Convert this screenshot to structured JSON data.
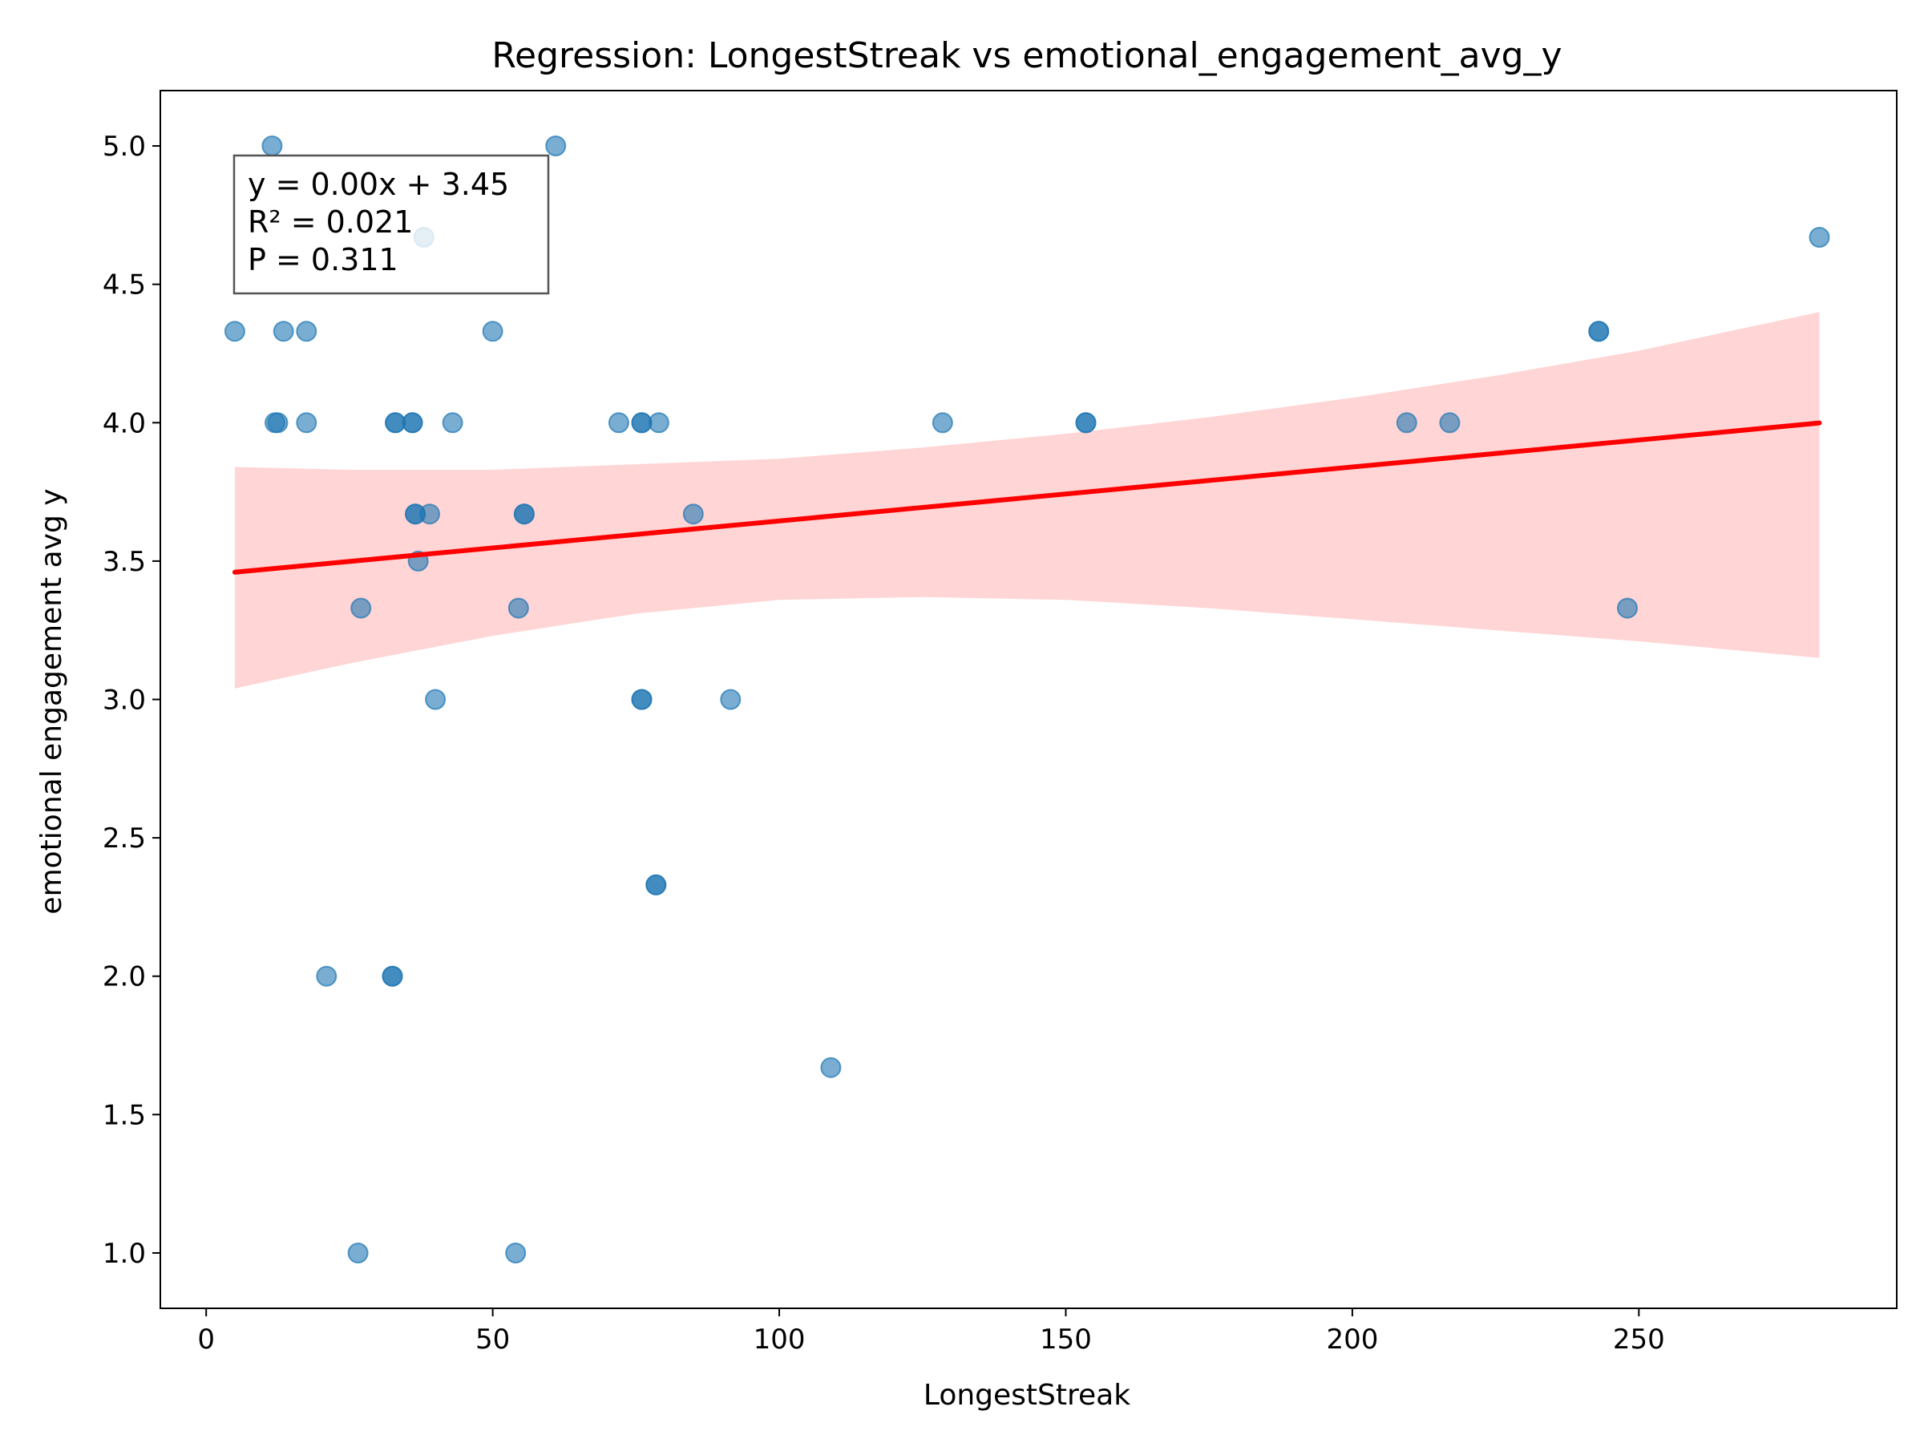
{
  "chart_data": {
    "type": "scatter",
    "title": "Regression: LongestStreak vs emotional_engagement_avg_y",
    "xlabel": "LongestStreak",
    "ylabel": "emotional engagement avg y",
    "xlim": [
      -8,
      295
    ],
    "ylim": [
      0.8,
      5.2
    ],
    "xticks": [
      "0",
      "50",
      "100",
      "150",
      "200",
      "250"
    ],
    "yticks": [
      "1.0",
      "1.5",
      "2.0",
      "2.5",
      "3.0",
      "3.5",
      "4.0",
      "4.5",
      "5.0"
    ],
    "xtick_values": [
      0,
      50,
      100,
      150,
      200,
      250
    ],
    "ytick_values": [
      1.0,
      1.5,
      2.0,
      2.5,
      3.0,
      3.5,
      4.0,
      4.5,
      5.0
    ],
    "grid": false,
    "colors": {
      "points": "#1f77b4",
      "line": "#ff0000",
      "band": "#ffb3b3"
    },
    "points": [
      {
        "x": 5,
        "y": 4.33
      },
      {
        "x": 11.5,
        "y": 5.0
      },
      {
        "x": 12,
        "y": 4.0
      },
      {
        "x": 12.5,
        "y": 4.0
      },
      {
        "x": 13.5,
        "y": 4.33
      },
      {
        "x": 17.5,
        "y": 4.33
      },
      {
        "x": 17.5,
        "y": 4.0
      },
      {
        "x": 21,
        "y": 2.0
      },
      {
        "x": 27,
        "y": 3.33
      },
      {
        "x": 26.5,
        "y": 1.0
      },
      {
        "x": 32.5,
        "y": 2.0
      },
      {
        "x": 32.5,
        "y": 2.0
      },
      {
        "x": 33,
        "y": 4.0
      },
      {
        "x": 33,
        "y": 4.0
      },
      {
        "x": 36,
        "y": 4.0
      },
      {
        "x": 36,
        "y": 4.0
      },
      {
        "x": 36.5,
        "y": 3.67
      },
      {
        "x": 36.5,
        "y": 3.67
      },
      {
        "x": 37,
        "y": 3.5
      },
      {
        "x": 38,
        "y": 4.67
      },
      {
        "x": 39,
        "y": 3.67
      },
      {
        "x": 40,
        "y": 3.0
      },
      {
        "x": 43,
        "y": 4.0
      },
      {
        "x": 50,
        "y": 4.33
      },
      {
        "x": 54,
        "y": 1.0
      },
      {
        "x": 54.5,
        "y": 3.33
      },
      {
        "x": 55.5,
        "y": 3.67
      },
      {
        "x": 55.5,
        "y": 3.67
      },
      {
        "x": 61,
        "y": 5.0
      },
      {
        "x": 72,
        "y": 4.0
      },
      {
        "x": 76,
        "y": 4.0
      },
      {
        "x": 76,
        "y": 4.0
      },
      {
        "x": 76,
        "y": 3.0
      },
      {
        "x": 76,
        "y": 3.0
      },
      {
        "x": 78.5,
        "y": 2.33
      },
      {
        "x": 78.5,
        "y": 2.33
      },
      {
        "x": 79,
        "y": 4.0
      },
      {
        "x": 85,
        "y": 3.67
      },
      {
        "x": 91.5,
        "y": 3.0
      },
      {
        "x": 109,
        "y": 1.67
      },
      {
        "x": 128.5,
        "y": 4.0
      },
      {
        "x": 153.5,
        "y": 4.0
      },
      {
        "x": 153.5,
        "y": 4.0
      },
      {
        "x": 209.5,
        "y": 4.0
      },
      {
        "x": 217,
        "y": 4.0
      },
      {
        "x": 243,
        "y": 4.33
      },
      {
        "x": 243,
        "y": 4.33
      },
      {
        "x": 248,
        "y": 3.33
      },
      {
        "x": 281.5,
        "y": 4.67
      }
    ],
    "regression": {
      "slope": 0.00195,
      "intercept": 3.45,
      "x_range": [
        5,
        281.5
      ]
    },
    "confidence_band": {
      "x": [
        5,
        25,
        50,
        75,
        100,
        125,
        150,
        175,
        200,
        225,
        250,
        281.5
      ],
      "lower": [
        3.04,
        3.13,
        3.23,
        3.31,
        3.36,
        3.37,
        3.36,
        3.33,
        3.29,
        3.25,
        3.21,
        3.15
      ],
      "upper": [
        3.84,
        3.83,
        3.83,
        3.85,
        3.87,
        3.91,
        3.96,
        4.02,
        4.09,
        4.17,
        4.26,
        4.4
      ]
    },
    "annotation": {
      "lines": [
        "y = 0.00x + 3.45",
        "R² = 0.021",
        "P = 0.311"
      ],
      "position": "top-left"
    }
  }
}
